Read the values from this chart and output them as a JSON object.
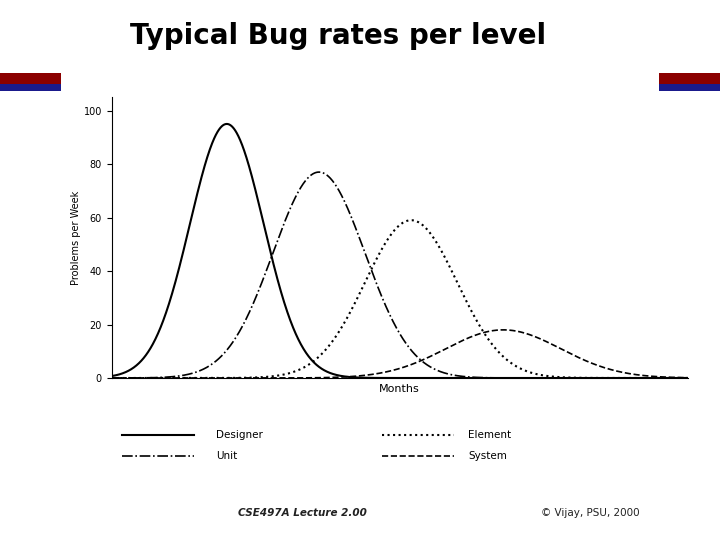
{
  "title": "Typical Bug rates per level",
  "title_fontsize": 20,
  "title_fontweight": "bold",
  "xlabel": "Months",
  "ylabel": "Problems per Week",
  "ylim": [
    0,
    105
  ],
  "yticks": [
    0,
    20,
    40,
    60,
    80,
    100
  ],
  "background_color": "#ffffff",
  "red_stripe_color": "#8B0000",
  "blue_stripe_color": "#1a1a8c",
  "footer_text_left": "CSE497A Lecture 2.00",
  "footer_text_right": "© Vijay, PSU, 2000",
  "curves": {
    "designer": {
      "mu": 10,
      "sigma": 3.2,
      "peak": 95,
      "linestyle": "-",
      "linewidth": 1.5,
      "label": "Designer"
    },
    "unit": {
      "mu": 18,
      "sigma": 4.0,
      "peak": 77,
      "linestyle": "-.",
      "linewidth": 1.2,
      "label": "Unit"
    },
    "element": {
      "mu": 26,
      "sigma": 4.0,
      "peak": 59,
      "linestyle": ":",
      "linewidth": 1.5,
      "label": "Element"
    },
    "system": {
      "mu": 34,
      "sigma": 5.0,
      "peak": 18,
      "linestyle": "--",
      "linewidth": 1.2,
      "label": "System"
    }
  }
}
